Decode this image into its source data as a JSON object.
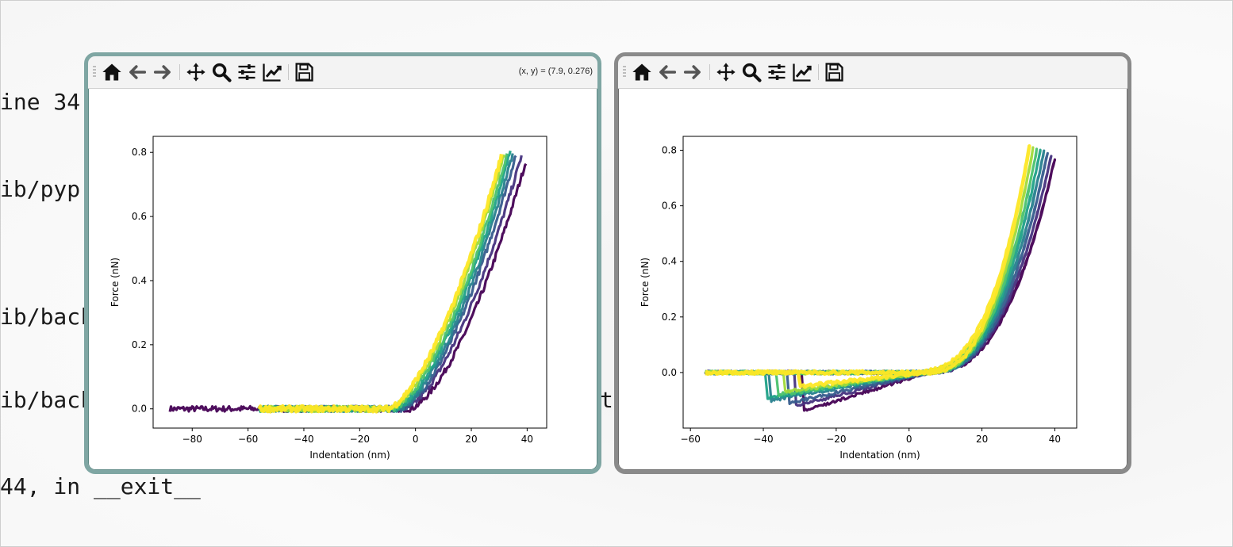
{
  "terminal": {
    "lines": [
      "ine 34",
      "ib/pyp",
      "ib/back",
      "ib/back",
      "ta",
      "44, in __exit__"
    ]
  },
  "windows": [
    {
      "toolbar": {
        "icons": [
          "home-icon",
          "back-arrow-icon",
          "forward-arrow-icon",
          "pan-icon",
          "zoom-icon",
          "configure-subplots-icon",
          "edit-axis-icon",
          "save-icon"
        ],
        "coords": "(x, y) = (7.9, 0.276)"
      }
    },
    {
      "toolbar": {
        "icons": [
          "home-icon",
          "back-arrow-icon",
          "forward-arrow-icon",
          "pan-icon",
          "zoom-icon",
          "configure-subplots-icon",
          "edit-axis-icon",
          "save-icon"
        ],
        "coords": ""
      }
    }
  ],
  "colors": {
    "left_window_border": "#7fa6a3",
    "right_window_border": "#8a8a8a",
    "viridis": [
      "#440154",
      "#46327e",
      "#365c8d",
      "#277f8e",
      "#1fa187",
      "#4ac16d",
      "#a0da39",
      "#fde725"
    ]
  },
  "chart_data": [
    {
      "type": "line",
      "title": "",
      "xlabel": "Indentation (nm)",
      "ylabel": "Force (nN)",
      "xlim": [
        -94,
        47
      ],
      "ylim": [
        -0.06,
        0.85
      ],
      "xticks": [
        -80,
        -60,
        -40,
        -20,
        0,
        20,
        40
      ],
      "yticks": [
        0.0,
        0.2,
        0.4,
        0.6,
        0.8
      ],
      "xtick_labels": [
        "−80",
        "−60",
        "−40",
        "−20",
        "0",
        "20",
        "40"
      ],
      "ytick_labels": [
        "0.0",
        "0.2",
        "0.4",
        "0.6",
        "0.8"
      ],
      "colormap": "viridis",
      "series": [
        {
          "start": -88,
          "contact": -2,
          "end": 40,
          "ymax": 0.785
        },
        {
          "start": -56,
          "contact": -4,
          "end": 38,
          "ymax": 0.79
        },
        {
          "start": -56,
          "contact": -5,
          "end": 36,
          "ymax": 0.795
        },
        {
          "start": -56,
          "contact": -6,
          "end": 35,
          "ymax": 0.8
        },
        {
          "start": -56,
          "contact": -7,
          "end": 34,
          "ymax": 0.805
        },
        {
          "start": -56,
          "contact": -8,
          "end": 33,
          "ymax": 0.8
        },
        {
          "start": -56,
          "contact": -9,
          "end": 32,
          "ymax": 0.8
        },
        {
          "start": -56,
          "contact": -10,
          "end": 31,
          "ymax": 0.795
        }
      ]
    },
    {
      "type": "line",
      "title": "",
      "xlabel": "Indentation (nm)",
      "ylabel": "Force (nN)",
      "xlim": [
        -62,
        46
      ],
      "ylim": [
        -0.2,
        0.85
      ],
      "xticks": [
        -60,
        -40,
        -20,
        0,
        20,
        40
      ],
      "yticks": [
        0.0,
        0.2,
        0.4,
        0.6,
        0.8
      ],
      "xtick_labels": [
        "−60",
        "−40",
        "−20",
        "0",
        "20",
        "40"
      ],
      "ytick_labels": [
        "0.0",
        "0.2",
        "0.4",
        "0.6",
        "0.8"
      ],
      "colormap": "viridis",
      "series": [
        {
          "start": -56,
          "end": 40,
          "ymax": 0.77,
          "snap_x": -29,
          "snap_y": -0.14
        },
        {
          "start": -56,
          "end": 39,
          "ymax": 0.78,
          "snap_x": -31,
          "snap_y": -0.12
        },
        {
          "start": -56,
          "end": 38,
          "ymax": 0.79,
          "snap_x": -33,
          "snap_y": -0.11
        },
        {
          "start": -56,
          "end": 37,
          "ymax": 0.795,
          "snap_x": -38,
          "snap_y": -0.1
        },
        {
          "start": -56,
          "end": 36,
          "ymax": 0.8,
          "snap_x": -39,
          "snap_y": -0.09
        },
        {
          "start": -56,
          "end": 35,
          "ymax": 0.8,
          "snap_x": -36,
          "snap_y": -0.08
        },
        {
          "start": -56,
          "end": 34,
          "ymax": 0.805,
          "snap_x": -34,
          "snap_y": -0.07
        },
        {
          "start": -56,
          "end": 33,
          "ymax": 0.81,
          "snap_x": -30,
          "snap_y": -0.05
        }
      ]
    }
  ]
}
